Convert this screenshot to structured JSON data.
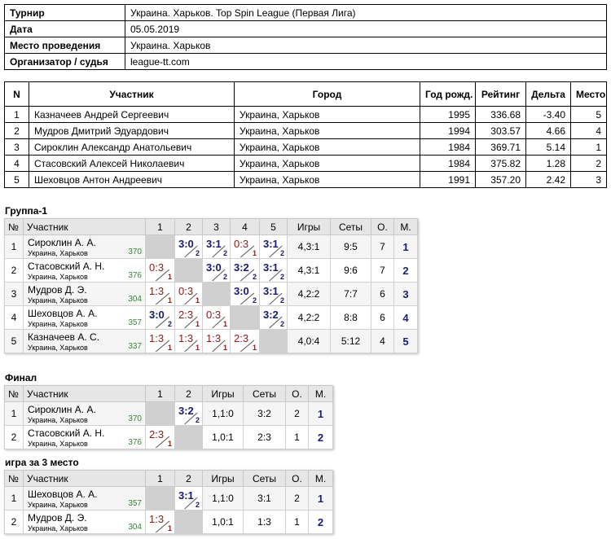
{
  "info": {
    "rows": [
      [
        "Турнир",
        "Украина. Харьков. Top Spin League (Первая Лига)"
      ],
      [
        "Дата",
        "05.05.2019"
      ],
      [
        "Место проведения",
        "Украина. Харьков"
      ],
      [
        "Организатор / судья",
        "league-tt.com"
      ]
    ]
  },
  "participants": {
    "headers": [
      "N",
      "Участник",
      "Город",
      "Год рожд.",
      "Рейтинг",
      "Дельта",
      "Место"
    ],
    "rows": [
      [
        "1",
        "Казначеев Андрей Сергеевич",
        "Украина, Харьков",
        "1995",
        "336.68",
        "-3.40",
        "5"
      ],
      [
        "2",
        "Мудров Дмитрий Эдуардович",
        "Украина, Харьков",
        "1994",
        "303.57",
        "4.66",
        "4"
      ],
      [
        "3",
        "Сироклин Александр Анатольевич",
        "Украина, Харьков",
        "1984",
        "369.71",
        "5.14",
        "1"
      ],
      [
        "4",
        "Стасовский Алексей Николаевич",
        "Украина, Харьков",
        "1984",
        "375.82",
        "1.28",
        "2"
      ],
      [
        "5",
        "Шеховцов Антон Андреевич",
        "Украина, Харьков",
        "1991",
        "357.20",
        "2.42",
        "3"
      ]
    ]
  },
  "groups": [
    {
      "title": "Группа-1",
      "headers": [
        "№",
        "Участник",
        "1",
        "2",
        "3",
        "4",
        "5",
        "Игры",
        "Сеты",
        "О.",
        "М."
      ],
      "rows": [
        {
          "n": "1",
          "name": "Сироклин А. А.",
          "city": "Украина, Харьков",
          "rating": "370",
          "cells": [
            null,
            {
              "score": "3:0",
              "points": "2"
            },
            {
              "score": "3:1",
              "points": "2"
            },
            {
              "score": "0:3",
              "points": "1"
            },
            {
              "score": "3:1",
              "points": "2"
            }
          ],
          "games": "4,3:1",
          "sets": "9:5",
          "o": "7",
          "m": "1"
        },
        {
          "n": "2",
          "name": "Стасовский А. Н.",
          "city": "Украина, Харьков",
          "rating": "376",
          "cells": [
            {
              "score": "0:3",
              "points": "1"
            },
            null,
            {
              "score": "3:0",
              "points": "2"
            },
            {
              "score": "3:2",
              "points": "2"
            },
            {
              "score": "3:1",
              "points": "2"
            }
          ],
          "games": "4,3:1",
          "sets": "9:6",
          "o": "7",
          "m": "2"
        },
        {
          "n": "3",
          "name": "Мудров Д. Э.",
          "city": "Украина, Харьков",
          "rating": "304",
          "cells": [
            {
              "score": "1:3",
              "points": "1"
            },
            {
              "score": "0:3",
              "points": "1"
            },
            null,
            {
              "score": "3:0",
              "points": "2"
            },
            {
              "score": "3:1",
              "points": "2"
            }
          ],
          "games": "4,2:2",
          "sets": "7:7",
          "o": "6",
          "m": "3"
        },
        {
          "n": "4",
          "name": "Шеховцов А. А.",
          "city": "Украина, Харьков",
          "rating": "357",
          "cells": [
            {
              "score": "3:0",
              "points": "2"
            },
            {
              "score": "2:3",
              "points": "1"
            },
            {
              "score": "0:3",
              "points": "1"
            },
            null,
            {
              "score": "3:2",
              "points": "2"
            }
          ],
          "games": "4,2:2",
          "sets": "8:8",
          "o": "6",
          "m": "4"
        },
        {
          "n": "5",
          "name": "Казначеев А. С.",
          "city": "Украина, Харьков",
          "rating": "337",
          "cells": [
            {
              "score": "1:3",
              "points": "1"
            },
            {
              "score": "1:3",
              "points": "1"
            },
            {
              "score": "1:3",
              "points": "1"
            },
            {
              "score": "2:3",
              "points": "1"
            },
            null
          ],
          "games": "4,0:4",
          "sets": "5:12",
          "o": "4",
          "m": "5"
        }
      ]
    },
    {
      "title": "Финал",
      "headers": [
        "№",
        "Участник",
        "1",
        "2",
        "Игры",
        "Сеты",
        "О.",
        "М."
      ],
      "rows": [
        {
          "n": "1",
          "name": "Сироклин А. А.",
          "city": "Украина, Харьков",
          "rating": "370",
          "cells": [
            null,
            {
              "score": "3:2",
              "points": "2"
            }
          ],
          "games": "1,1:0",
          "sets": "3:2",
          "o": "2",
          "m": "1"
        },
        {
          "n": "2",
          "name": "Стасовский А. Н.",
          "city": "Украина, Харьков",
          "rating": "376",
          "cells": [
            {
              "score": "2:3",
              "points": "1"
            },
            null
          ],
          "games": "1,0:1",
          "sets": "2:3",
          "o": "1",
          "m": "2"
        }
      ]
    },
    {
      "title": "игра за 3 место",
      "headers": [
        "№",
        "Участник",
        "1",
        "2",
        "Игры",
        "Сеты",
        "О.",
        "М."
      ],
      "rows": [
        {
          "n": "1",
          "name": "Шеховцов А. А.",
          "city": "Украина, Харьков",
          "rating": "357",
          "cells": [
            null,
            {
              "score": "3:1",
              "points": "2"
            }
          ],
          "games": "1,1:0",
          "sets": "3:1",
          "o": "2",
          "m": "1"
        },
        {
          "n": "2",
          "name": "Мудров Д. Э.",
          "city": "Украина, Харьков",
          "rating": "304",
          "cells": [
            {
              "score": "1:3",
              "points": "1"
            },
            null
          ],
          "games": "1,0:1",
          "sets": "1:3",
          "o": "1",
          "m": "2"
        }
      ]
    }
  ]
}
